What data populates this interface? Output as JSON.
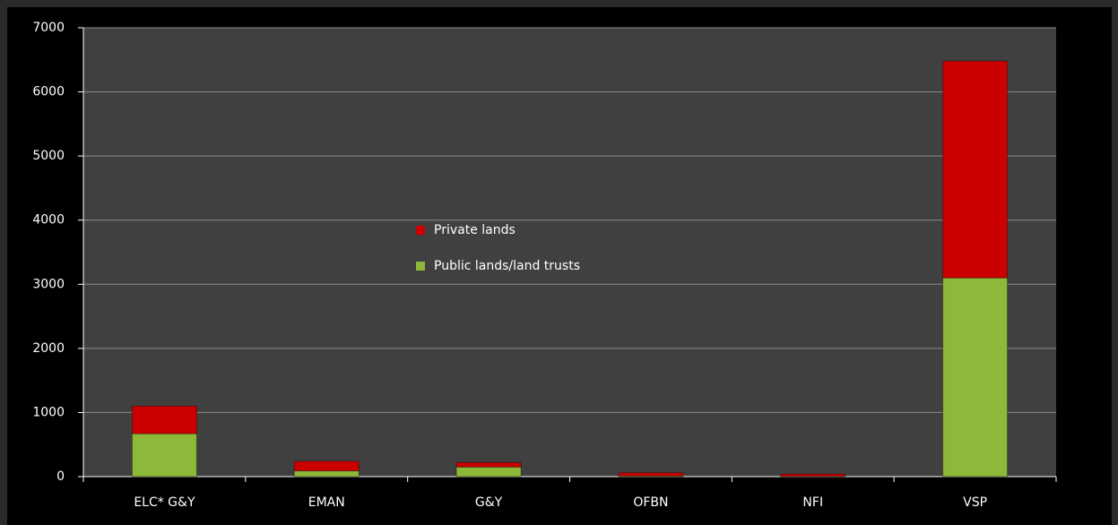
{
  "chart_data": {
    "type": "stacked_bar",
    "categories": [
      "ELC* G&Y",
      "EMAN",
      "G&Y",
      "OFBN",
      "NFI",
      "VSP"
    ],
    "series": [
      {
        "name": "Private lands",
        "color": "#cc0000",
        "values": [
          430,
          150,
          70,
          50,
          35,
          3380
        ]
      },
      {
        "name": "Public lands/land trusts",
        "color": "#8db83a",
        "values": [
          670,
          90,
          150,
          10,
          5,
          3100
        ]
      }
    ],
    "ylim": [
      0,
      7000
    ],
    "yticks": [
      0,
      1000,
      2000,
      3000,
      4000,
      5000,
      6000,
      7000
    ],
    "grid": true,
    "legend": "center"
  }
}
